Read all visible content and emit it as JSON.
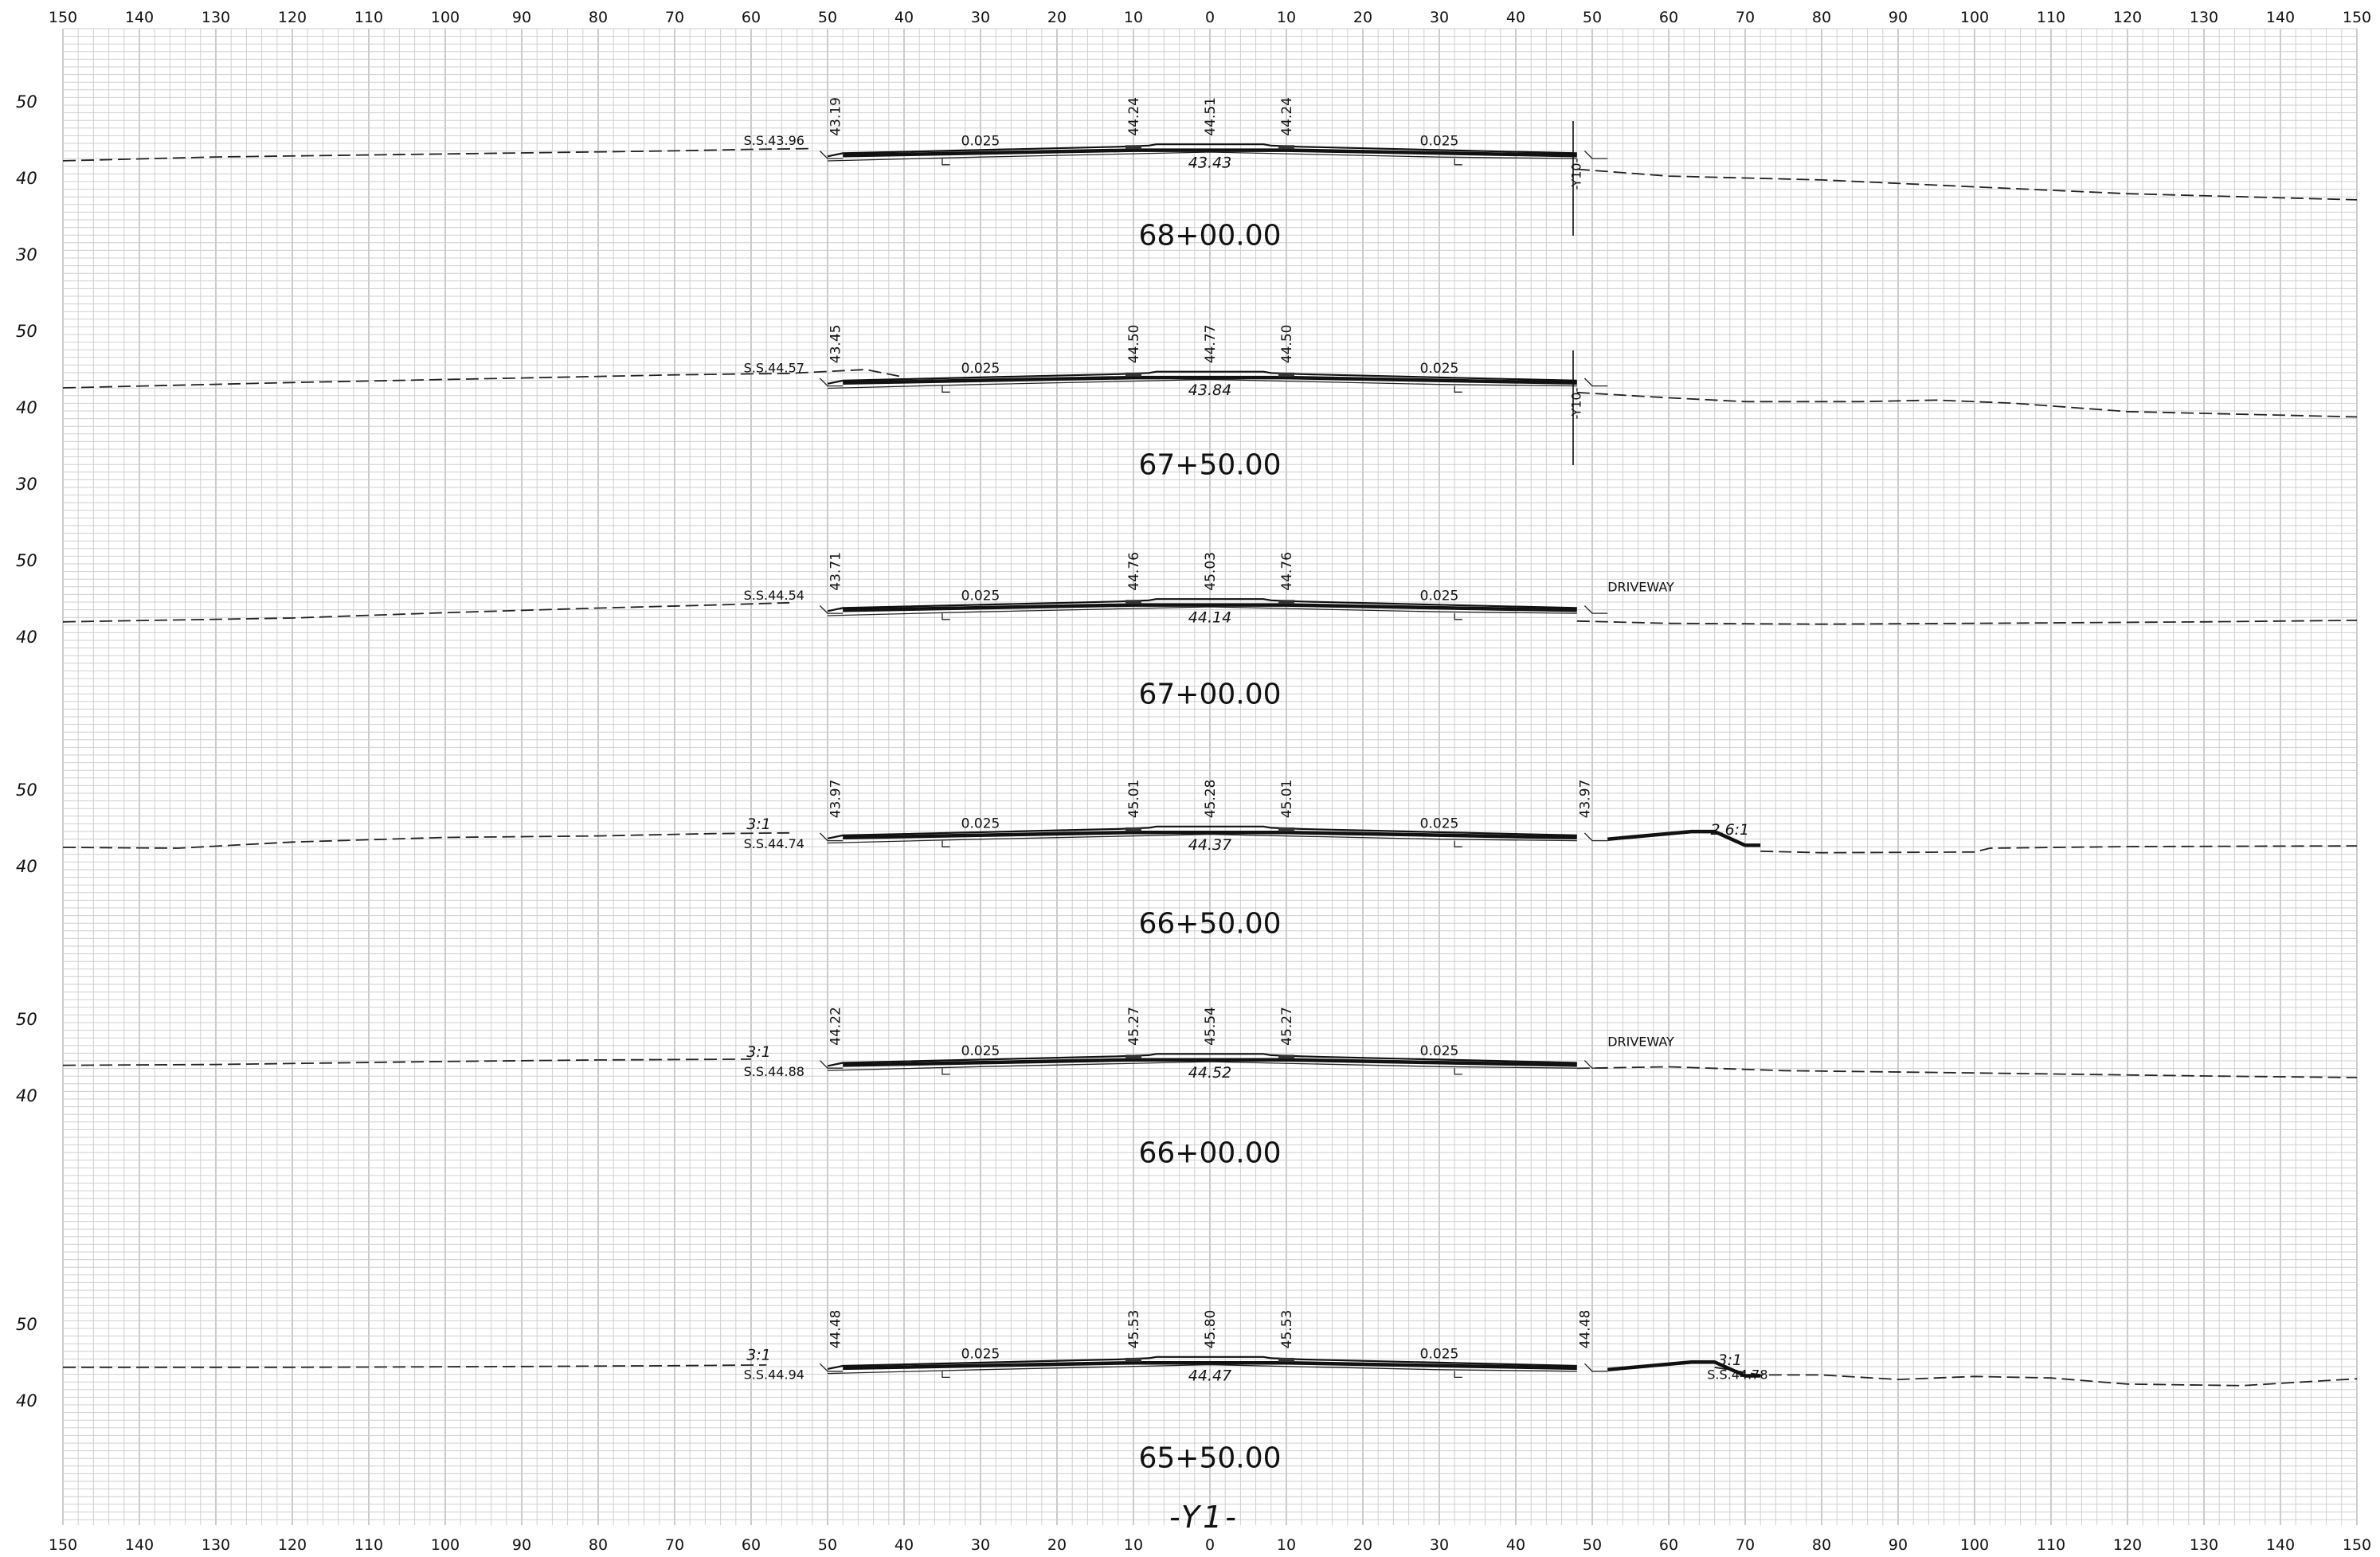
{
  "sheet_title": "-Y1-",
  "offset_ticks": [
    "150",
    "140",
    "130",
    "120",
    "110",
    "100",
    "90",
    "80",
    "70",
    "60",
    "50",
    "40",
    "30",
    "20",
    "10",
    "0",
    "10",
    "20",
    "30",
    "40",
    "50",
    "60",
    "70",
    "80",
    "90",
    "100",
    "110",
    "120",
    "130",
    "140",
    "150"
  ],
  "offset_values": [
    -150,
    -140,
    -130,
    -120,
    -110,
    -100,
    -90,
    -80,
    -70,
    -60,
    -50,
    -40,
    -30,
    -20,
    -10,
    0,
    10,
    20,
    30,
    40,
    50,
    60,
    70,
    80,
    90,
    100,
    110,
    120,
    130,
    140,
    150
  ],
  "sections": [
    {
      "station": "68+00.00",
      "elev_labels": [
        {
          "text": "50",
          "value": 50
        },
        {
          "text": "40",
          "value": 40
        },
        {
          "text": "30",
          "value": 30
        }
      ],
      "centerline_elev": "44.51",
      "edge_elev": "44.24",
      "shoulder_left": "43.19",
      "shoulder_right": "",
      "bottom_elev": "43.43",
      "slope": "0.025",
      "left_note": "S.S.43.96",
      "right_note": "",
      "right_slope": "",
      "left_slope": "",
      "row_marker": "-Y10-",
      "ground_left": [
        [
          -150,
          42.3
        ],
        [
          -130,
          42.8
        ],
        [
          -100,
          43.2
        ],
        [
          -70,
          43.6
        ],
        [
          -60,
          43.8
        ],
        [
          -52,
          43.9
        ]
      ],
      "ground_right": [
        [
          48,
          41.2
        ],
        [
          60,
          40.3
        ],
        [
          80,
          39.8
        ],
        [
          100,
          38.9
        ],
        [
          120,
          38.0
        ],
        [
          150,
          37.2
        ]
      ]
    },
    {
      "station": "67+50.00",
      "elev_labels": [
        {
          "text": "50",
          "value": 50
        },
        {
          "text": "40",
          "value": 40
        },
        {
          "text": "30",
          "value": 30
        }
      ],
      "centerline_elev": "44.77",
      "edge_elev": "44.50",
      "shoulder_left": "43.45",
      "shoulder_right": "",
      "bottom_elev": "43.84",
      "slope": "0.025",
      "left_note": "S.S.44.57",
      "right_note": "",
      "right_slope": "",
      "left_slope": "",
      "row_marker": "-Y10-",
      "ground_left": [
        [
          -150,
          42.6
        ],
        [
          -120,
          43.3
        ],
        [
          -90,
          43.9
        ],
        [
          -70,
          44.3
        ],
        [
          -55,
          44.5
        ],
        [
          -45,
          45.0
        ],
        [
          -40,
          44.0
        ]
      ],
      "ground_right": [
        [
          48,
          42.0
        ],
        [
          60,
          41.3
        ],
        [
          70,
          40.8
        ],
        [
          85,
          40.8
        ],
        [
          95,
          41.0
        ],
        [
          105,
          40.6
        ],
        [
          120,
          39.5
        ],
        [
          150,
          38.8
        ]
      ]
    },
    {
      "station": "67+00.00",
      "elev_labels": [
        {
          "text": "50",
          "value": 50
        },
        {
          "text": "40",
          "value": 40
        }
      ],
      "centerline_elev": "45.03",
      "edge_elev": "44.76",
      "shoulder_left": "43.71",
      "shoulder_right": "",
      "bottom_elev": "44.14",
      "slope": "0.025",
      "left_note": "S.S.44.54",
      "right_note": "DRIVEWAY",
      "right_slope": "",
      "left_slope": "",
      "row_marker": "",
      "ground_left": [
        [
          -150,
          42.0
        ],
        [
          -120,
          42.5
        ],
        [
          -100,
          43.2
        ],
        [
          -80,
          43.8
        ],
        [
          -65,
          44.2
        ],
        [
          -55,
          44.5
        ]
      ],
      "ground_right": [
        [
          48,
          42.1
        ],
        [
          60,
          41.8
        ],
        [
          80,
          41.7
        ],
        [
          100,
          41.8
        ],
        [
          130,
          42.0
        ],
        [
          150,
          42.2
        ]
      ]
    },
    {
      "station": "66+50.00",
      "elev_labels": [
        {
          "text": "50",
          "value": 50
        },
        {
          "text": "40",
          "value": 40
        }
      ],
      "centerline_elev": "45.28",
      "edge_elev": "45.01",
      "shoulder_left": "43.97",
      "shoulder_right": "43.97",
      "bottom_elev": "44.37",
      "slope": "0.025",
      "left_note": "S.S.44.74",
      "right_note": "",
      "right_slope": "2.6:1",
      "left_slope": "3:1",
      "row_marker": "",
      "ground_left": [
        [
          -150,
          42.5
        ],
        [
          -135,
          42.4
        ],
        [
          -120,
          43.2
        ],
        [
          -100,
          43.8
        ],
        [
          -80,
          44.0
        ],
        [
          -65,
          44.3
        ],
        [
          -55,
          44.4
        ]
      ],
      "ground_right": [
        [
          72,
          42.0
        ],
        [
          80,
          41.8
        ],
        [
          100,
          41.9
        ],
        [
          102,
          42.4
        ],
        [
          120,
          42.6
        ],
        [
          150,
          42.7
        ]
      ]
    },
    {
      "station": "66+00.00",
      "elev_labels": [
        {
          "text": "50",
          "value": 50
        },
        {
          "text": "40",
          "value": 40
        }
      ],
      "centerline_elev": "45.54",
      "edge_elev": "45.27",
      "shoulder_left": "44.22",
      "shoulder_right": "",
      "bottom_elev": "44.52",
      "slope": "0.025",
      "left_note": "S.S.44.88",
      "right_note": "DRIVEWAY",
      "right_slope": "",
      "left_slope": "3:1",
      "row_marker": "",
      "ground_left": [
        [
          -150,
          44.0
        ],
        [
          -130,
          44.1
        ],
        [
          -100,
          44.5
        ],
        [
          -80,
          44.7
        ],
        [
          -60,
          44.8
        ]
      ],
      "ground_right": [
        [
          48,
          43.6
        ],
        [
          60,
          43.8
        ],
        [
          75,
          43.3
        ],
        [
          100,
          43.0
        ],
        [
          130,
          42.6
        ],
        [
          150,
          42.4
        ]
      ]
    },
    {
      "station": "65+50.00",
      "elev_labels": [
        {
          "text": "50",
          "value": 50
        },
        {
          "text": "40",
          "value": 40
        }
      ],
      "centerline_elev": "45.80",
      "edge_elev": "45.53",
      "shoulder_left": "44.48",
      "shoulder_right": "44.48",
      "bottom_elev": "44.47",
      "slope": "0.025",
      "left_note": "S.S.44.94",
      "right_note": "S.S.44.78",
      "right_slope": "3:1",
      "left_slope": "3:1",
      "row_marker": "",
      "ground_left": [
        [
          -150,
          44.4
        ],
        [
          -120,
          44.4
        ],
        [
          -90,
          44.5
        ],
        [
          -70,
          44.6
        ],
        [
          -58,
          44.7
        ]
      ],
      "ground_right": [
        [
          66,
          44.4
        ],
        [
          72,
          43.4
        ],
        [
          80,
          43.4
        ],
        [
          90,
          42.8
        ],
        [
          100,
          43.2
        ],
        [
          110,
          43.0
        ],
        [
          120,
          42.2
        ],
        [
          135,
          42.0
        ],
        [
          150,
          42.9
        ]
      ]
    }
  ]
}
